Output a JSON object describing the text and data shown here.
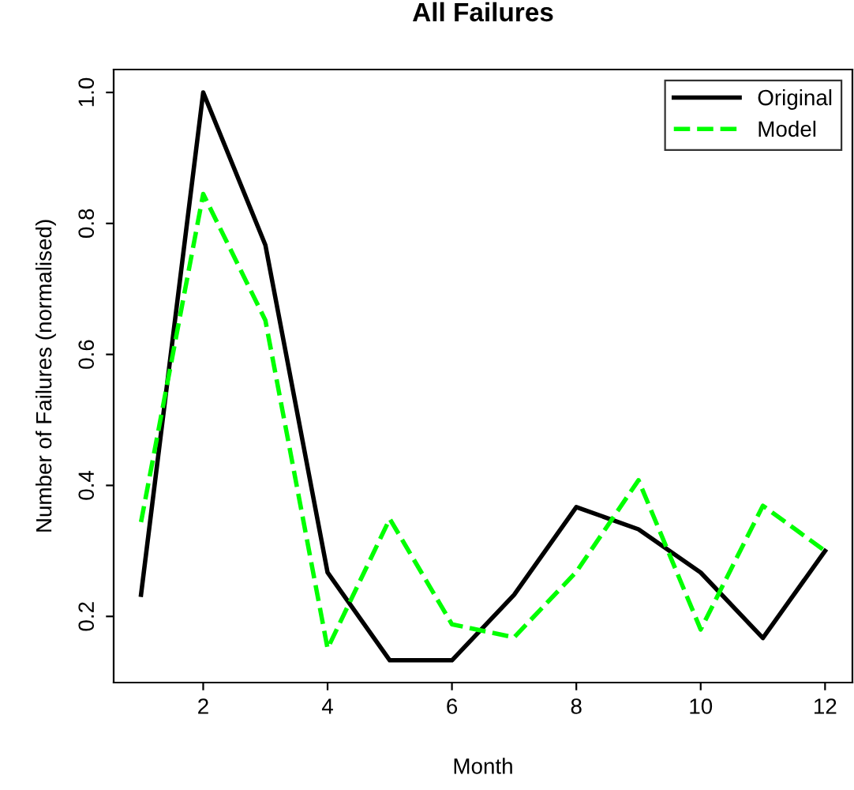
{
  "chart_data": {
    "type": "line",
    "title": "All Failures",
    "xlabel": "Month",
    "ylabel": "Number of Failures (normalised)",
    "x": [
      1,
      2,
      3,
      4,
      5,
      6,
      7,
      8,
      9,
      10,
      11,
      12
    ],
    "series": [
      {
        "name": "Original",
        "color": "#000000",
        "line_style": "solid",
        "values": [
          0.233,
          1.0,
          0.767,
          0.267,
          0.133,
          0.133,
          0.233,
          0.367,
          0.333,
          0.267,
          0.167,
          0.3
        ]
      },
      {
        "name": "Model",
        "color": "#00ff00",
        "line_style": "dashed",
        "values": [
          0.344,
          0.845,
          0.652,
          0.151,
          0.349,
          0.188,
          0.168,
          0.268,
          0.408,
          0.18,
          0.369,
          0.3
        ]
      }
    ],
    "xlim": [
      0.56,
      12.44
    ],
    "ylim": [
      0.099,
      1.035
    ],
    "xticks": [
      2,
      4,
      6,
      8,
      10,
      12
    ],
    "yticks": [
      0.2,
      0.4,
      0.6,
      0.8,
      {
        "value": 1,
        "label": "1.0"
      }
    ],
    "grid": false,
    "legend": "top right",
    "marker": "none"
  }
}
